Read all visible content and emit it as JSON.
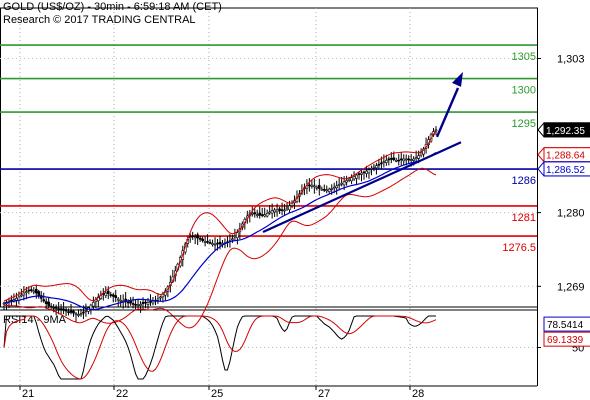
{
  "header": {
    "title": "GOLD (US$/OZ) - 30min - 6:59:18 AM (CET)",
    "copyright": "Research © 2017 TRADING CENTRAL"
  },
  "colors": {
    "resistance": "#2e9a2e",
    "pivot": "#0000a8",
    "support": "#e00000",
    "candle": "#000000",
    "bollinger": "#d40000",
    "moving_average": "#0000cc",
    "trendline": "#00008b",
    "arrow": "#00008b",
    "rsi": "#000000",
    "rsi_ma": "#d40000",
    "price_badge": "#000000",
    "ma_badge": "#0000cc",
    "boll_badge": "#d40000"
  },
  "chart_data": [
    {
      "type": "candlestick",
      "title": "GOLD (US$/OZ) - 30min",
      "x_tick_labels": [
        "21",
        "22",
        "25",
        "27",
        "28"
      ],
      "y_tick_labels": [
        "1,303",
        "1,280",
        "1,269"
      ],
      "ylim": [
        1262,
        1306
      ],
      "grid": true,
      "levels": [
        {
          "label": "1305",
          "value": 1305,
          "kind": "resistance"
        },
        {
          "label": "1300",
          "value": 1300,
          "kind": "resistance"
        },
        {
          "label": "1295",
          "value": 1295,
          "kind": "resistance"
        },
        {
          "label": "1286",
          "value": 1286.5,
          "kind": "pivot"
        },
        {
          "label": "1281",
          "value": 1281,
          "kind": "support"
        },
        {
          "label": "1276.5",
          "value": 1276.5,
          "kind": "support"
        }
      ],
      "price_badges": [
        {
          "label": "1,292.35",
          "value": 1292.35,
          "kind": "price"
        },
        {
          "label": "1,288.64",
          "value": 1288.64,
          "kind": "bollinger"
        },
        {
          "label": "1,286.52",
          "value": 1286.52,
          "kind": "ma"
        }
      ],
      "close_series": [
        1266.5,
        1266.6,
        1266.8,
        1266.9,
        1267.0,
        1267.2,
        1267.4,
        1267.7,
        1268.0,
        1268.2,
        1268.3,
        1268.4,
        1268.3,
        1268.0,
        1267.6,
        1267.2,
        1266.8,
        1266.4,
        1266.1,
        1265.9,
        1265.8,
        1265.7,
        1265.6,
        1265.5,
        1265.4,
        1265.3,
        1265.2,
        1265.1,
        1265.0,
        1264.9,
        1264.8,
        1264.9,
        1265.1,
        1265.4,
        1265.8,
        1266.2,
        1266.6,
        1267.0,
        1267.4,
        1267.7,
        1267.9,
        1268.0,
        1267.9,
        1267.7,
        1267.5,
        1267.3,
        1267.1,
        1266.9,
        1266.8,
        1266.7,
        1266.6,
        1266.5,
        1266.4,
        1266.3,
        1266.3,
        1266.3,
        1266.4,
        1266.5,
        1266.6,
        1266.7,
        1266.8,
        1266.9,
        1267.1,
        1267.4,
        1267.8,
        1268.3,
        1268.9,
        1269.6,
        1270.4,
        1271.3,
        1272.3,
        1273.3,
        1274.3,
        1275.3,
        1276.0,
        1276.4,
        1276.5,
        1276.4,
        1276.2,
        1276.0,
        1275.8,
        1275.7,
        1275.6,
        1275.5,
        1275.4,
        1275.3,
        1275.3,
        1275.3,
        1275.4,
        1275.5,
        1275.6,
        1275.8,
        1276.1,
        1276.5,
        1277.0,
        1277.6,
        1278.3,
        1279.0,
        1279.5,
        1279.8,
        1279.9,
        1279.8,
        1279.7,
        1279.6,
        1279.6,
        1279.7,
        1279.9,
        1280.1,
        1280.3,
        1280.4,
        1280.4,
        1280.3,
        1280.3,
        1280.4,
        1280.7,
        1281.0,
        1281.4,
        1281.8,
        1282.3,
        1282.8,
        1283.3,
        1283.7,
        1284.0,
        1284.1,
        1284.1,
        1284.0,
        1283.8,
        1283.6,
        1283.5,
        1283.4,
        1283.4,
        1283.5,
        1283.6,
        1283.8,
        1284.0,
        1284.2,
        1284.4,
        1284.6,
        1284.8,
        1285.0,
        1285.2,
        1285.4,
        1285.6,
        1285.8,
        1285.9,
        1286.0,
        1286.2,
        1286.4,
        1286.6,
        1286.8,
        1287.0,
        1287.2,
        1287.4,
        1287.6,
        1287.8,
        1288.0,
        1288.0,
        1287.9,
        1287.8,
        1287.8,
        1287.9,
        1288.0,
        1288.0,
        1287.9,
        1287.9,
        1288.0,
        1288.2,
        1288.5,
        1288.9,
        1289.5,
        1290.2,
        1290.9,
        1291.6,
        1292.1,
        1292.35
      ],
      "rsi": {
        "name": "RSI14 - 9MA",
        "y_tick_labels": [
          "50"
        ],
        "ylim": [
          0,
          100
        ],
        "badges": [
          {
            "label": "78.5414",
            "value": 78.54
          },
          {
            "label": "69.1339",
            "value": 69.13
          }
        ]
      }
    }
  ]
}
